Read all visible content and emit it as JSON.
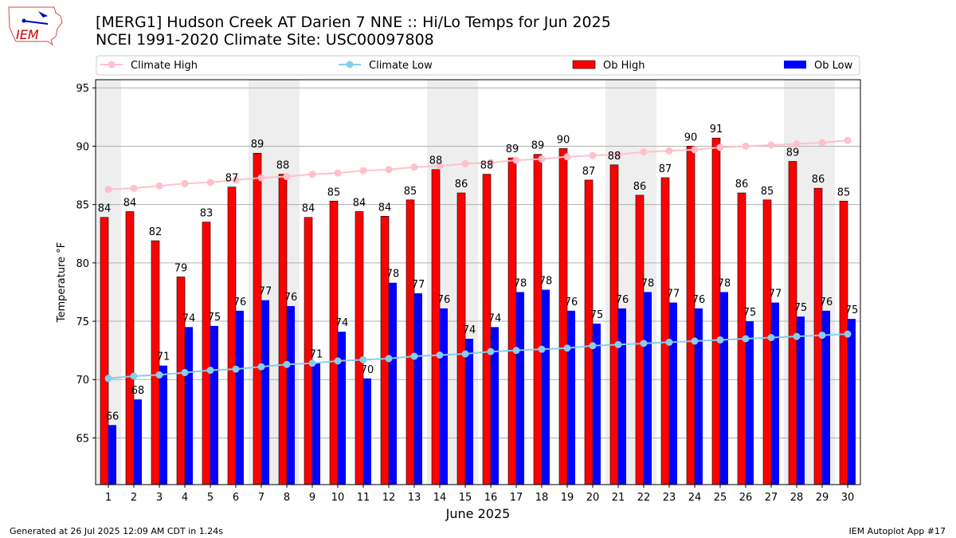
{
  "header": {
    "logo_text": "IEM",
    "title_line1": "[MERG1] Hudson Creek  AT Darien 7 NNE :: Hi/Lo Temps for Jun 2025",
    "title_line2": "NCEI 1991-2020 Climate Site: USC00097808"
  },
  "footer": {
    "left": "Generated at 26 Jul 2025 12:09 AM CDT in 1.24s",
    "right": "IEM Autoplot App #17"
  },
  "chart_data": {
    "type": "bar",
    "xlabel": "June 2025",
    "ylabel": "Temperature °F",
    "ylim": [
      61,
      95.7
    ],
    "yticks": [
      65,
      70,
      75,
      80,
      85,
      90,
      95
    ],
    "grid": true,
    "legend_placement": "top",
    "weekend_days": [
      1,
      7,
      8,
      14,
      15,
      21,
      22,
      28,
      29
    ],
    "colors": {
      "ob_high": "#ff0000",
      "ob_low": "#0000ff",
      "climate_high": "#ffc0cb",
      "climate_low": "#87ceeb",
      "weekend": "#eeeeee"
    },
    "categories": [
      1,
      2,
      3,
      4,
      5,
      6,
      7,
      8,
      9,
      10,
      11,
      12,
      13,
      14,
      15,
      16,
      17,
      18,
      19,
      20,
      21,
      22,
      23,
      24,
      25,
      26,
      27,
      28,
      29,
      30
    ],
    "series": [
      {
        "name": "Climate High",
        "type": "line",
        "values": [
          86.3,
          86.4,
          86.6,
          86.8,
          86.9,
          87.1,
          87.3,
          87.4,
          87.6,
          87.7,
          87.9,
          88.0,
          88.2,
          88.3,
          88.5,
          88.6,
          88.8,
          88.9,
          89.1,
          89.2,
          89.3,
          89.5,
          89.6,
          89.7,
          89.9,
          90.0,
          90.1,
          90.2,
          90.3,
          90.5
        ]
      },
      {
        "name": "Climate Low",
        "type": "line",
        "values": [
          70.1,
          70.3,
          70.4,
          70.6,
          70.8,
          70.9,
          71.1,
          71.3,
          71.4,
          71.6,
          71.7,
          71.8,
          72.0,
          72.1,
          72.2,
          72.4,
          72.5,
          72.6,
          72.7,
          72.9,
          73.0,
          73.1,
          73.2,
          73.3,
          73.4,
          73.5,
          73.6,
          73.7,
          73.8,
          73.9
        ]
      },
      {
        "name": "Ob High",
        "type": "bar",
        "values": [
          83.9,
          84.4,
          81.9,
          78.8,
          83.5,
          86.5,
          89.4,
          87.6,
          83.9,
          85.3,
          84.4,
          84.0,
          85.4,
          88.0,
          86.0,
          87.6,
          89.0,
          89.3,
          89.8,
          87.1,
          88.4,
          85.8,
          87.3,
          90.0,
          90.7,
          86.0,
          85.4,
          88.7,
          86.4,
          85.3
        ],
        "labels": [
          84,
          84,
          82,
          79,
          83,
          87,
          89,
          88,
          84,
          85,
          84,
          84,
          85,
          88,
          86,
          88,
          89,
          89,
          90,
          87,
          88,
          86,
          87,
          90,
          91,
          86,
          85,
          89,
          86,
          85
        ]
      },
      {
        "name": "Ob Low",
        "type": "bar",
        "values": [
          66.1,
          68.3,
          71.2,
          74.5,
          74.6,
          75.9,
          76.8,
          76.3,
          71.4,
          74.1,
          70.1,
          78.3,
          77.4,
          76.1,
          73.5,
          74.5,
          77.5,
          77.7,
          75.9,
          74.8,
          76.1,
          77.5,
          76.6,
          76.1,
          77.5,
          75.0,
          76.6,
          75.4,
          75.9,
          75.2
        ],
        "labels": [
          66,
          68,
          71,
          74,
          75,
          76,
          77,
          76,
          71,
          74,
          70,
          78,
          77,
          76,
          74,
          74,
          78,
          78,
          76,
          75,
          76,
          78,
          77,
          76,
          78,
          75,
          77,
          75,
          76,
          75
        ]
      }
    ]
  }
}
